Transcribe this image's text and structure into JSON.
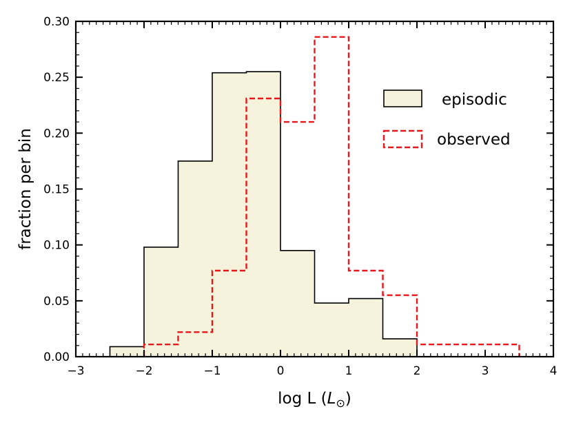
{
  "chart_data": {
    "type": "histogram",
    "xlabel": "log L",
    "xlabel_unit": "L",
    "xlabel_unit_sub": "⊙",
    "ylabel": "fraction per bin",
    "xlim": [
      -3,
      4
    ],
    "ylim": [
      0,
      0.3
    ],
    "xticks": [
      -3,
      -2,
      -1,
      0,
      1,
      2,
      3,
      4
    ],
    "xtick_labels": [
      "−3",
      "−2",
      "−1",
      "0",
      "1",
      "2",
      "3",
      "4"
    ],
    "yticks": [
      0.0,
      0.05,
      0.1,
      0.15,
      0.2,
      0.25,
      0.3
    ],
    "ytick_labels": [
      "0.00",
      "0.05",
      "0.10",
      "0.15",
      "0.20",
      "0.25",
      "0.30"
    ],
    "grid": false,
    "legend_position": "upper-right",
    "series": [
      {
        "name": "episodic",
        "style": "filled",
        "fill": "#f5f3dc",
        "stroke": "#000000",
        "bin_edges": [
          -2.5,
          -2.0,
          -1.5,
          -1.0,
          -0.5,
          0.0,
          0.5,
          1.0,
          1.5,
          2.0
        ],
        "values": [
          0.009,
          0.098,
          0.175,
          0.254,
          0.255,
          0.095,
          0.048,
          0.052,
          0.016
        ]
      },
      {
        "name": "observed",
        "style": "dashed",
        "stroke": "#e8161b",
        "bin_edges": [
          -2.0,
          -1.5,
          -1.0,
          -0.5,
          0.0,
          0.5,
          1.0,
          1.5,
          2.0,
          2.5,
          3.0,
          3.5
        ],
        "values": [
          0.011,
          0.022,
          0.077,
          0.231,
          0.21,
          0.286,
          0.077,
          0.055,
          0.011,
          0.011,
          0.011
        ]
      }
    ]
  }
}
